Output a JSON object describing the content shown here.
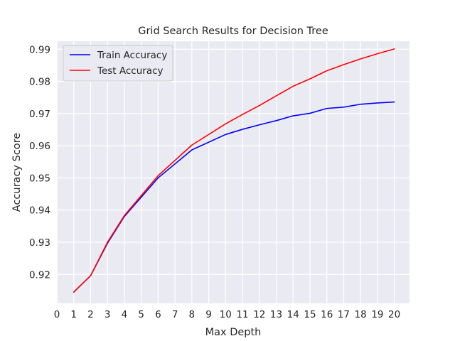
{
  "chart_data": {
    "type": "line",
    "title": "Grid Search Results for Decision Tree",
    "xlabel": "Max Depth",
    "ylabel": "Accuracy Score",
    "xlim": [
      0,
      20.9
    ],
    "ylim": [
      0.911,
      0.9925
    ],
    "xticks": [
      0,
      1,
      2,
      3,
      4,
      5,
      6,
      7,
      8,
      9,
      10,
      11,
      12,
      13,
      14,
      15,
      16,
      17,
      18,
      19,
      20
    ],
    "yticks": [
      0.92,
      0.93,
      0.94,
      0.95,
      0.96,
      0.97,
      0.98,
      0.99
    ],
    "ytick_labels": [
      "0.92",
      "0.93",
      "0.94",
      "0.95",
      "0.96",
      "0.97",
      "0.98",
      "0.99"
    ],
    "grid": true,
    "legend_position": "top-left",
    "background": "#eaeaf2",
    "series": [
      {
        "name": "Train Accuracy",
        "color": "#0000ff",
        "x": [
          1,
          2,
          3,
          4,
          6,
          8,
          10,
          11,
          12,
          13,
          14,
          15,
          16,
          17,
          18,
          19,
          20
        ],
        "y": [
          0.9145,
          0.9196,
          0.9297,
          0.938,
          0.95,
          0.9587,
          0.9635,
          0.9651,
          0.9665,
          0.9678,
          0.9693,
          0.9701,
          0.9716,
          0.972,
          0.9729,
          0.9733,
          0.9736
        ]
      },
      {
        "name": "Test Accuracy",
        "color": "#ff0000",
        "x": [
          1,
          2,
          3,
          4,
          6,
          8,
          10,
          11,
          12,
          13,
          14,
          15,
          16,
          17,
          18,
          19,
          20
        ],
        "y": [
          0.9145,
          0.9196,
          0.93,
          0.9383,
          0.9507,
          0.9602,
          0.9668,
          0.9697,
          0.9725,
          0.9755,
          0.9785,
          0.9808,
          0.9833,
          0.9852,
          0.987,
          0.9886,
          0.9901
        ]
      }
    ]
  }
}
